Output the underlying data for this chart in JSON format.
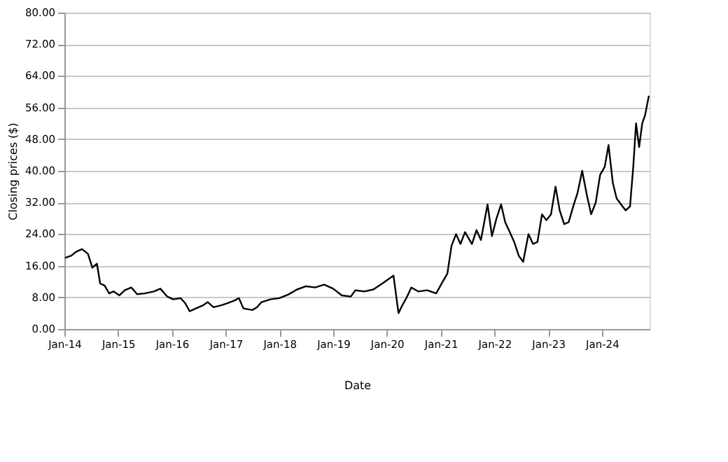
{
  "chart_data": {
    "type": "line",
    "xlabel": "Date",
    "ylabel": "Closing prices ($)",
    "x": [
      "2014-01-05",
      "2014-02-15",
      "2014-03-20",
      "2014-05-01",
      "2014-06-10",
      "2014-07-10",
      "2014-08-10",
      "2014-09-01",
      "2014-10-01",
      "2014-11-01",
      "2014-12-01",
      "2015-01-10",
      "2015-02-15",
      "2015-04-01",
      "2015-05-10",
      "2015-07-01",
      "2015-09-01",
      "2015-10-15",
      "2015-12-01",
      "2016-01-10",
      "2016-03-01",
      "2016-04-01",
      "2016-05-01",
      "2016-07-01",
      "2016-08-01",
      "2016-09-01",
      "2016-10-10",
      "2016-12-01",
      "2017-01-10",
      "2017-03-01",
      "2017-04-01",
      "2017-05-01",
      "2017-07-01",
      "2017-08-01",
      "2017-09-01",
      "2017-11-01",
      "2018-01-01",
      "2018-03-01",
      "2018-05-01",
      "2018-07-01",
      "2018-09-01",
      "2018-11-01",
      "2019-01-01",
      "2019-03-01",
      "2019-05-01",
      "2019-06-01",
      "2019-08-01",
      "2019-10-01",
      "2019-12-01",
      "2020-02-15",
      "2020-03-20",
      "2020-04-15",
      "2020-05-15",
      "2020-06-15",
      "2020-08-01",
      "2020-10-01",
      "2020-12-01",
      "2021-01-15",
      "2021-02-15",
      "2021-03-15",
      "2021-04-15",
      "2021-05-15",
      "2021-06-15",
      "2021-08-01",
      "2021-09-01",
      "2021-10-01",
      "2021-11-15",
      "2021-12-15",
      "2022-01-15",
      "2022-02-15",
      "2022-03-15",
      "2022-04-15",
      "2022-05-15",
      "2022-06-15",
      "2022-07-15",
      "2022-08-20",
      "2022-09-20",
      "2022-10-20",
      "2022-11-20",
      "2022-12-20",
      "2023-01-20",
      "2023-02-20",
      "2023-03-20",
      "2023-04-20",
      "2023-05-20",
      "2023-06-20",
      "2023-07-20",
      "2023-08-20",
      "2023-09-20",
      "2023-10-20",
      "2023-11-20",
      "2023-12-20",
      "2024-01-20",
      "2024-02-15",
      "2024-03-15",
      "2024-04-10",
      "2024-05-10",
      "2024-06-10",
      "2024-07-10",
      "2024-08-01",
      "2024-08-20",
      "2024-09-10",
      "2024-10-01",
      "2024-10-20",
      "2024-11-15"
    ],
    "series": [
      {
        "color": "#000000",
        "values": [
          18,
          18.5,
          19.5,
          20.2,
          19,
          15.5,
          16.5,
          11.5,
          11,
          9,
          9.5,
          8.5,
          9.8,
          10.5,
          8.8,
          9,
          9.5,
          10.2,
          8.2,
          7.5,
          7.8,
          6.5,
          4.5,
          5.5,
          6,
          6.8,
          5.5,
          6,
          6.5,
          7.2,
          7.8,
          5.2,
          4.8,
          5.5,
          6.8,
          7.5,
          7.8,
          8.7,
          10,
          10.8,
          10.5,
          11.2,
          10.2,
          8.5,
          8.2,
          9.8,
          9.5,
          10,
          11.5,
          13.5,
          4,
          6,
          8,
          10.5,
          9.5,
          9.8,
          9,
          12,
          14,
          21,
          24,
          21.5,
          24.5,
          21.5,
          25,
          22.5,
          31.5,
          23.5,
          28,
          31.5,
          27,
          24.5,
          22,
          18.5,
          17,
          24,
          21.5,
          22,
          29,
          27.5,
          29,
          36,
          30,
          26.5,
          27,
          31,
          34.5,
          40,
          34,
          29,
          32,
          39,
          41,
          46.5,
          37,
          33,
          31.5,
          30,
          31,
          41,
          52,
          46,
          52,
          54,
          59
        ]
      }
    ],
    "xlim": [
      "2014-01-01",
      "2024-11-20"
    ],
    "xticks": [
      {
        "value": "2014-01-01",
        "label": "Jan-14"
      },
      {
        "value": "2015-01-01",
        "label": "Jan-15"
      },
      {
        "value": "2016-01-01",
        "label": "Jan-16"
      },
      {
        "value": "2017-01-01",
        "label": "Jan-17"
      },
      {
        "value": "2018-01-01",
        "label": "Jan-18"
      },
      {
        "value": "2019-01-01",
        "label": "Jan-19"
      },
      {
        "value": "2020-01-01",
        "label": "Jan-20"
      },
      {
        "value": "2021-01-01",
        "label": "Jan-21"
      },
      {
        "value": "2022-01-01",
        "label": "Jan-22"
      },
      {
        "value": "2023-01-01",
        "label": "Jan-23"
      },
      {
        "value": "2024-01-01",
        "label": "Jan-24"
      }
    ],
    "ylim": [
      0,
      80
    ],
    "yticks": [
      {
        "value": 0,
        "label": "0.00"
      },
      {
        "value": 8,
        "label": "8.00"
      },
      {
        "value": 16,
        "label": "16.00"
      },
      {
        "value": 24,
        "label": "24.00"
      },
      {
        "value": 32,
        "label": "32.00"
      },
      {
        "value": 40,
        "label": "40.00"
      },
      {
        "value": 48,
        "label": "48.00"
      },
      {
        "value": 56,
        "label": "56.00"
      },
      {
        "value": 64,
        "label": "64.00"
      },
      {
        "value": 72,
        "label": "72.00"
      },
      {
        "value": 80,
        "label": "80.00"
      }
    ],
    "grid": "y",
    "marker": "none",
    "line_style": "solid"
  }
}
